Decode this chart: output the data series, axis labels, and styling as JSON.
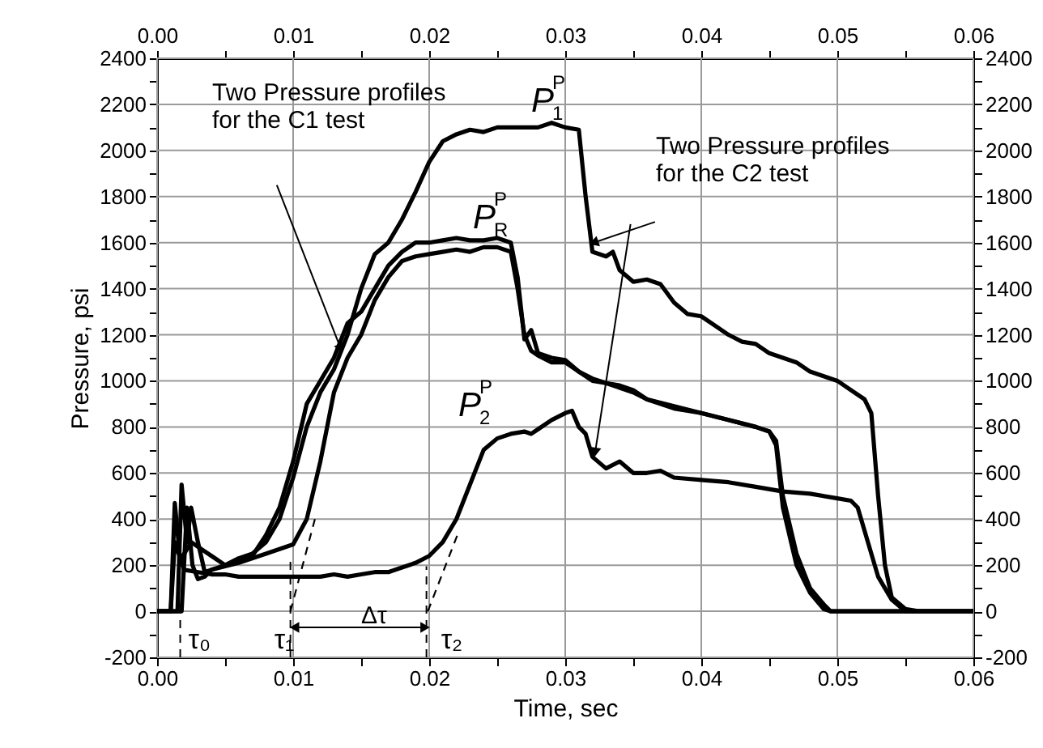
{
  "chart_data": {
    "type": "line",
    "xlabel": "Time, sec",
    "ylabel": "Pressure, psi",
    "grid": true,
    "xlim": [
      0,
      0.06
    ],
    "ylim": [
      -200,
      2400
    ],
    "x2lim": [
      0,
      0.06
    ],
    "y2lim": [
      -200,
      2400
    ],
    "xticks": [
      {
        "value": 0,
        "label": "0.00"
      },
      {
        "value": 0.005,
        "label": null
      },
      {
        "value": 0.01,
        "label": "0.01"
      },
      {
        "value": 0.015,
        "label": null
      },
      {
        "value": 0.02,
        "label": "0.02"
      },
      {
        "value": 0.025,
        "label": null
      },
      {
        "value": 0.03,
        "label": "0.03"
      },
      {
        "value": 0.035,
        "label": null
      },
      {
        "value": 0.04,
        "label": "0.04"
      },
      {
        "value": 0.045,
        "label": null
      },
      {
        "value": 0.05,
        "label": "0.05"
      },
      {
        "value": 0.055,
        "label": null
      },
      {
        "value": 0.06,
        "label": "0.06"
      }
    ],
    "x2ticks": [
      {
        "value": 0,
        "label": "0.00"
      },
      {
        "value": 0.005,
        "label": null
      },
      {
        "value": 0.01,
        "label": "0.01"
      },
      {
        "value": 0.015,
        "label": null
      },
      {
        "value": 0.02,
        "label": "0.02"
      },
      {
        "value": 0.025,
        "label": null
      },
      {
        "value": 0.03,
        "label": "0.03"
      },
      {
        "value": 0.035,
        "label": null
      },
      {
        "value": 0.04,
        "label": "0.04"
      },
      {
        "value": 0.045,
        "label": null
      },
      {
        "value": 0.05,
        "label": "0.05"
      },
      {
        "value": 0.055,
        "label": null
      },
      {
        "value": 0.06,
        "label": "0.06"
      }
    ],
    "yticks": [
      -200,
      {
        "value": -100,
        "label": null
      },
      0,
      {
        "value": 100,
        "label": null
      },
      200,
      {
        "value": 300,
        "label": null
      },
      400,
      {
        "value": 500,
        "label": null
      },
      600,
      {
        "value": 700,
        "label": null
      },
      800,
      {
        "value": 900,
        "label": null
      },
      1000,
      {
        "value": 1100,
        "label": null
      },
      1200,
      {
        "value": 1300,
        "label": null
      },
      1400,
      {
        "value": 1500,
        "label": null
      },
      1600,
      {
        "value": 1700,
        "label": null
      },
      1800,
      {
        "value": 1900,
        "label": null
      },
      2000,
      {
        "value": 2100,
        "label": null
      },
      2200,
      {
        "value": 2300,
        "label": null
      },
      2400
    ],
    "y2ticks": [
      -200,
      {
        "value": -100,
        "label": null
      },
      0,
      {
        "value": 100,
        "label": null
      },
      200,
      {
        "value": 300,
        "label": null
      },
      400,
      {
        "value": 500,
        "label": null
      },
      600,
      {
        "value": 700,
        "label": null
      },
      800,
      {
        "value": 900,
        "label": null
      },
      1000,
      {
        "value": 1100,
        "label": null
      },
      1200,
      {
        "value": 1300,
        "label": null
      },
      1400,
      {
        "value": 1500,
        "label": null
      },
      1600,
      {
        "value": 1700,
        "label": null
      },
      1800,
      {
        "value": 1900,
        "label": null
      },
      2000,
      {
        "value": 2100,
        "label": null
      },
      2200,
      {
        "value": 2300,
        "label": null
      },
      2400
    ],
    "series": [
      {
        "color": "#000000",
        "x": [
          0,
          0.001,
          0.0013,
          0.0017,
          0.0025,
          0.003,
          0.0035,
          0.004,
          0.005,
          0.006,
          0.007,
          0.008,
          0.009,
          0.01,
          0.011,
          0.012,
          0.013,
          0.014,
          0.015,
          0.016,
          0.017,
          0.018,
          0.019,
          0.02,
          0.021,
          0.022,
          0.023,
          0.024,
          0.025,
          0.026,
          0.027,
          0.028,
          0.029,
          0.03,
          0.031,
          0.0315,
          0.032,
          0.033,
          0.0335,
          0.034,
          0.035,
          0.036,
          0.037,
          0.038,
          0.039,
          0.04,
          0.041,
          0.042,
          0.043,
          0.044,
          0.045,
          0.046,
          0.047,
          0.048,
          0.049,
          0.05,
          0.051,
          0.052,
          0.0525,
          0.053,
          0.0535,
          0.054,
          0.055,
          0.056,
          0.06
        ],
        "values": [
          0,
          0,
          470,
          220,
          300,
          280,
          260,
          240,
          200,
          230,
          250,
          300,
          400,
          580,
          800,
          950,
          1050,
          1200,
          1400,
          1550,
          1600,
          1700,
          1820,
          1950,
          2040,
          2070,
          2090,
          2080,
          2100,
          2100,
          2100,
          2100,
          2120,
          2100,
          2090,
          1800,
          1560,
          1540,
          1560,
          1480,
          1430,
          1440,
          1420,
          1340,
          1290,
          1280,
          1240,
          1200,
          1170,
          1160,
          1120,
          1100,
          1080,
          1040,
          1020,
          1000,
          960,
          920,
          860,
          500,
          200,
          60,
          10,
          0,
          0
        ]
      },
      {
        "color": "#000000",
        "x": [
          0,
          0.0015,
          0.0018,
          0.0022,
          0.0025,
          0.003,
          0.0035,
          0.004,
          0.005,
          0.006,
          0.007,
          0.008,
          0.009,
          0.01,
          0.011,
          0.012,
          0.013,
          0.014,
          0.015,
          0.016,
          0.017,
          0.018,
          0.019,
          0.02,
          0.021,
          0.022,
          0.023,
          0.024,
          0.025,
          0.026,
          0.0265,
          0.027,
          0.0275,
          0.028,
          0.029,
          0.03,
          0.031,
          0.032,
          0.033,
          0.034,
          0.035,
          0.036,
          0.038,
          0.04,
          0.042,
          0.044,
          0.045,
          0.0455,
          0.046,
          0.047,
          0.048,
          0.049,
          0.0495,
          0.06
        ],
        "values": [
          0,
          0,
          550,
          300,
          450,
          300,
          170,
          180,
          200,
          220,
          240,
          330,
          450,
          650,
          900,
          1000,
          1100,
          1250,
          1300,
          1400,
          1500,
          1560,
          1600,
          1600,
          1610,
          1620,
          1610,
          1610,
          1620,
          1600,
          1450,
          1180,
          1220,
          1120,
          1100,
          1090,
          1040,
          1000,
          990,
          980,
          960,
          920,
          890,
          860,
          830,
          800,
          780,
          740,
          500,
          250,
          100,
          30,
          0,
          0
        ]
      },
      {
        "color": "#000000",
        "x": [
          0,
          0.0018,
          0.0022,
          0.0026,
          0.003,
          0.0035,
          0.004,
          0.006,
          0.008,
          0.009,
          0.01,
          0.011,
          0.012,
          0.013,
          0.014,
          0.015,
          0.016,
          0.017,
          0.018,
          0.019,
          0.02,
          0.021,
          0.022,
          0.023,
          0.024,
          0.025,
          0.026,
          0.0265,
          0.027,
          0.0275,
          0.028,
          0.029,
          0.03,
          0.031,
          0.032,
          0.033,
          0.034,
          0.035,
          0.036,
          0.038,
          0.04,
          0.042,
          0.044,
          0.045,
          0.0455,
          0.046,
          0.047,
          0.048,
          0.049,
          0.0495,
          0.06
        ],
        "values": [
          0,
          0,
          450,
          200,
          140,
          150,
          180,
          210,
          250,
          270,
          290,
          400,
          650,
          950,
          1100,
          1200,
          1350,
          1450,
          1520,
          1540,
          1550,
          1560,
          1570,
          1560,
          1580,
          1580,
          1560,
          1400,
          1200,
          1130,
          1110,
          1080,
          1080,
          1040,
          1010,
          990,
          970,
          950,
          920,
          880,
          860,
          830,
          800,
          780,
          720,
          450,
          200,
          80,
          10,
          0,
          0
        ]
      },
      {
        "color": "#000000",
        "x": [
          0,
          0.001,
          0.0013,
          0.002,
          0.003,
          0.004,
          0.005,
          0.006,
          0.008,
          0.01,
          0.012,
          0.013,
          0.014,
          0.015,
          0.016,
          0.017,
          0.018,
          0.019,
          0.02,
          0.021,
          0.022,
          0.023,
          0.024,
          0.025,
          0.026,
          0.027,
          0.0275,
          0.028,
          0.029,
          0.03,
          0.0305,
          0.031,
          0.0315,
          0.032,
          0.033,
          0.034,
          0.035,
          0.036,
          0.037,
          0.038,
          0.04,
          0.042,
          0.044,
          0.046,
          0.048,
          0.05,
          0.051,
          0.0515,
          0.052,
          0.053,
          0.054,
          0.055,
          0.06
        ],
        "values": [
          0,
          0,
          300,
          180,
          170,
          160,
          160,
          150,
          150,
          150,
          150,
          160,
          150,
          160,
          170,
          170,
          190,
          210,
          240,
          300,
          400,
          550,
          700,
          750,
          770,
          780,
          770,
          790,
          830,
          860,
          870,
          800,
          770,
          670,
          620,
          650,
          600,
          600,
          610,
          580,
          570,
          560,
          540,
          520,
          510,
          490,
          480,
          450,
          350,
          150,
          50,
          0,
          0
        ]
      },
      {
        "color": "#000000",
        "line_style": "dashed",
        "x": [
          0.0098,
          0.0116
        ],
        "values": [
          0,
          400
        ]
      },
      {
        "color": "#000000",
        "line_style": "dashed",
        "x": [
          0.0199,
          0.0222
        ],
        "values": [
          0,
          350
        ]
      }
    ],
    "annotations": [
      "P$^{P}$$_{1}$",
      "P$^{P}$$_{R}$",
      "P$^{P}$$_{2}$",
      "Two Pressure profiles\nfor the C1 test",
      "Two Pressure profiles\nfor the C2 test",
      "Δτ"
    ],
    "ref_lines": [
      {
        "axis": "x",
        "value": 0.0017,
        "label": "τ₀",
        "line_style": "dashed",
        "color": "#000000"
      },
      {
        "axis": "x",
        "value": 0.0098,
        "label": "τ₁",
        "line_style": "dashed",
        "color": "#000000"
      },
      {
        "axis": "x",
        "value": 0.0198,
        "label": "τ₂",
        "line_style": "dashed",
        "color": "#000000"
      }
    ]
  }
}
